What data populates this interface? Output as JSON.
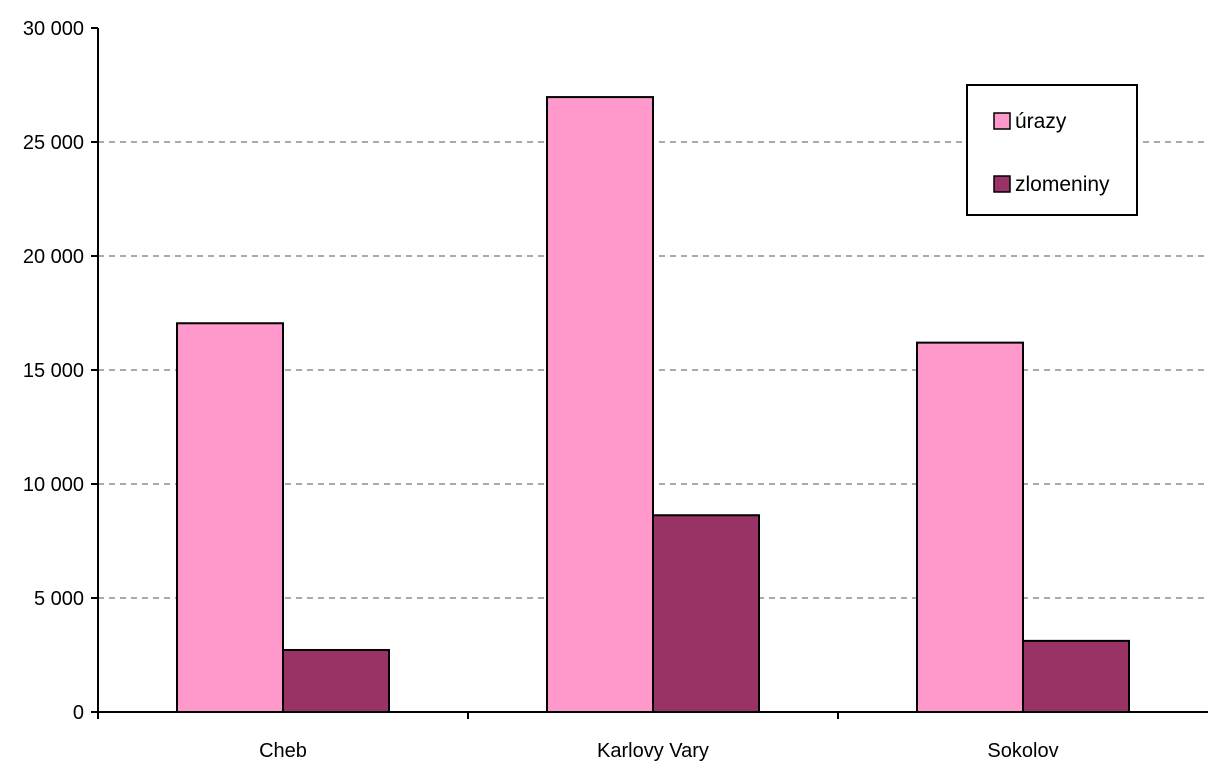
{
  "chart_data": {
    "type": "bar",
    "categories": [
      "Cheb",
      "Karlovy Vary",
      "Sokolov"
    ],
    "series": [
      {
        "name": "úrazy",
        "values": [
          17050,
          26970,
          16200
        ],
        "color": "#ff99cc"
      },
      {
        "name": "zlomeniny",
        "values": [
          2720,
          8630,
          3120
        ],
        "color": "#993366"
      }
    ],
    "ylim": [
      0,
      30000
    ],
    "yticks": [
      0,
      5000,
      10000,
      15000,
      20000,
      25000,
      30000
    ],
    "ytick_labels": [
      "0",
      "5 000",
      "10 000",
      "15 000",
      "20 000",
      "25 000",
      "30 000"
    ],
    "grid": true,
    "legend_position": "top-right",
    "title": "",
    "xlabel": "",
    "ylabel": ""
  }
}
